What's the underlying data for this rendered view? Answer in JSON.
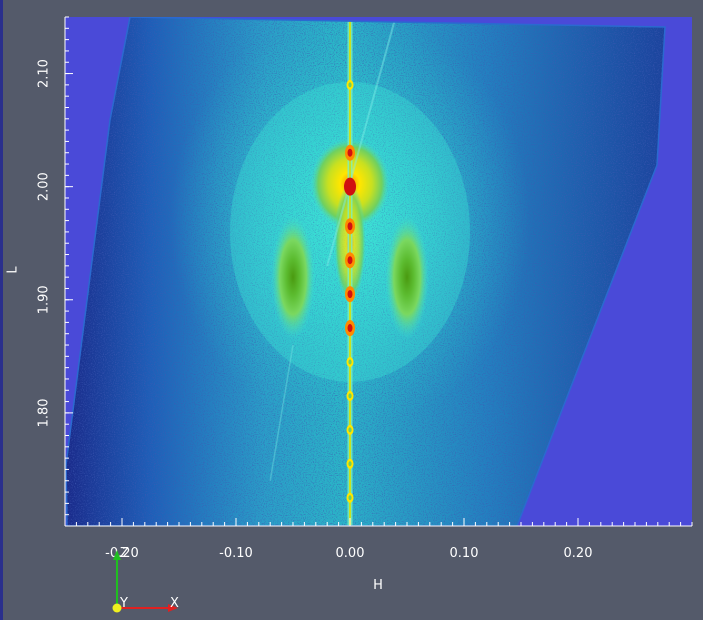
{
  "chart_data": {
    "type": "heatmap",
    "title": "",
    "xlabel": "H",
    "ylabel": "L",
    "xlim": [
      -0.25,
      0.3
    ],
    "ylim": [
      1.7,
      2.15
    ],
    "x_ticks": [
      {
        "value": -0.2,
        "label": "-0.20"
      },
      {
        "value": -0.1,
        "label": "-0.10"
      },
      {
        "value": 0.0,
        "label": "0.00"
      },
      {
        "value": 0.1,
        "label": "0.10"
      },
      {
        "value": 0.2,
        "label": "0.20"
      }
    ],
    "y_ticks": [
      {
        "value": 1.8,
        "label": "1.80"
      },
      {
        "value": 1.9,
        "label": "1.90"
      },
      {
        "value": 2.0,
        "label": "2.00"
      },
      {
        "value": 2.1,
        "label": "2.10"
      }
    ],
    "colormap": [
      "#1a1f8a",
      "#1e5fb8",
      "#2ab8c8",
      "#3fe0d0",
      "#6fd060",
      "#c8e020",
      "#ffe600",
      "#ff8a00",
      "#d01010"
    ],
    "background_color": "#4a4ad8",
    "features": [
      {
        "name": "specular-rod",
        "h": 0.0,
        "l_range": [
          1.7,
          2.15
        ]
      },
      {
        "name": "bragg-peak",
        "h": 0.0,
        "l": 2.0
      },
      {
        "name": "satellite-left",
        "h": -0.05,
        "l": 1.92
      },
      {
        "name": "satellite-right",
        "h": 0.05,
        "l": 1.92
      }
    ],
    "rod_peaks_l": [
      2.09,
      2.03,
      1.965,
      1.935,
      1.905,
      1.875,
      1.845,
      1.815,
      1.785,
      1.755,
      1.725
    ],
    "grid": false,
    "legend": "none"
  },
  "orientation_axes": {
    "z_label": "Z",
    "x_label": "X",
    "y_label": "Y",
    "z_color": "#20c020",
    "x_color": "#e02020",
    "y_color": "#f0f020"
  }
}
